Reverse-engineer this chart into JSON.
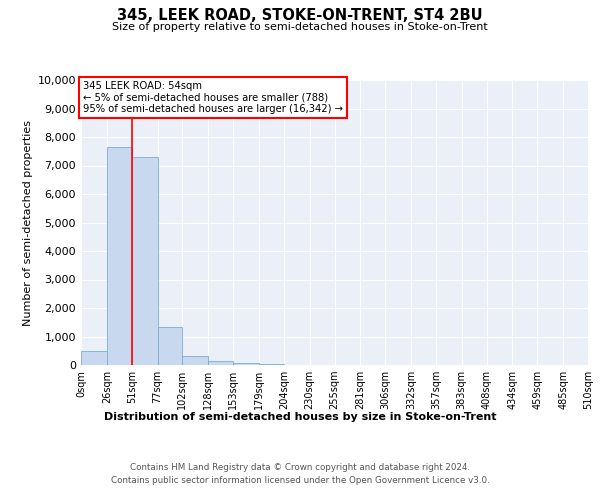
{
  "title": "345, LEEK ROAD, STOKE-ON-TRENT, ST4 2BU",
  "subtitle": "Size of property relative to semi-detached houses in Stoke-on-Trent",
  "xlabel": "Distribution of semi-detached houses by size in Stoke-on-Trent",
  "ylabel": "Number of semi-detached properties",
  "bar_color": "#c8d9ef",
  "bar_edge_color": "#7aadd4",
  "background_color": "#eaeff8",
  "annotation_text": "345 LEEK ROAD: 54sqm\n← 5% of semi-detached houses are smaller (788)\n95% of semi-detached houses are larger (16,342) →",
  "annotation_box_color": "#ffffff",
  "annotation_border_color": "red",
  "red_line_x": 51,
  "x_labels": [
    "0sqm",
    "26sqm",
    "51sqm",
    "77sqm",
    "102sqm",
    "128sqm",
    "153sqm",
    "179sqm",
    "204sqm",
    "230sqm",
    "255sqm",
    "281sqm",
    "306sqm",
    "332sqm",
    "357sqm",
    "383sqm",
    "408sqm",
    "434sqm",
    "459sqm",
    "485sqm",
    "510sqm"
  ],
  "bin_edges": [
    0,
    26,
    51,
    77,
    102,
    128,
    153,
    179,
    204,
    230,
    255,
    281,
    306,
    332,
    357,
    383,
    408,
    434,
    459,
    485,
    510
  ],
  "bar_heights": [
    500,
    7650,
    7300,
    1350,
    300,
    150,
    80,
    30,
    10,
    5,
    2,
    1,
    0,
    0,
    0,
    0,
    0,
    0,
    0,
    0
  ],
  "ylim": [
    0,
    10000
  ],
  "yticks": [
    0,
    1000,
    2000,
    3000,
    4000,
    5000,
    6000,
    7000,
    8000,
    9000,
    10000
  ],
  "footer_line1": "Contains HM Land Registry data © Crown copyright and database right 2024.",
  "footer_line2": "Contains public sector information licensed under the Open Government Licence v3.0."
}
